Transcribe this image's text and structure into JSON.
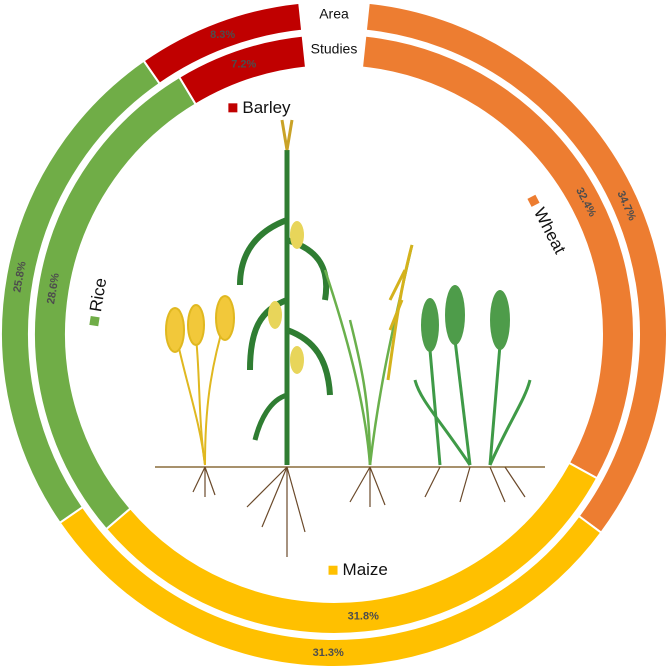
{
  "chart_data": {
    "type": "donut",
    "categories": [
      "Wheat",
      "Maize",
      "Rice",
      "Barley"
    ],
    "colors": [
      "#ed7d31",
      "#ffc000",
      "#70ad47",
      "#c00000"
    ],
    "series": [
      {
        "name": "Area",
        "values": [
          34.7,
          31.3,
          25.8,
          8.3
        ],
        "value_labels": [
          "34.7%",
          "31.3%",
          "25.8%",
          "8.3%"
        ]
      },
      {
        "name": "Studies",
        "values": [
          32.4,
          31.8,
          28.6,
          7.2
        ],
        "value_labels": [
          "32.4%",
          "31.8%",
          "28.6%",
          "7.2%"
        ]
      }
    ]
  }
}
